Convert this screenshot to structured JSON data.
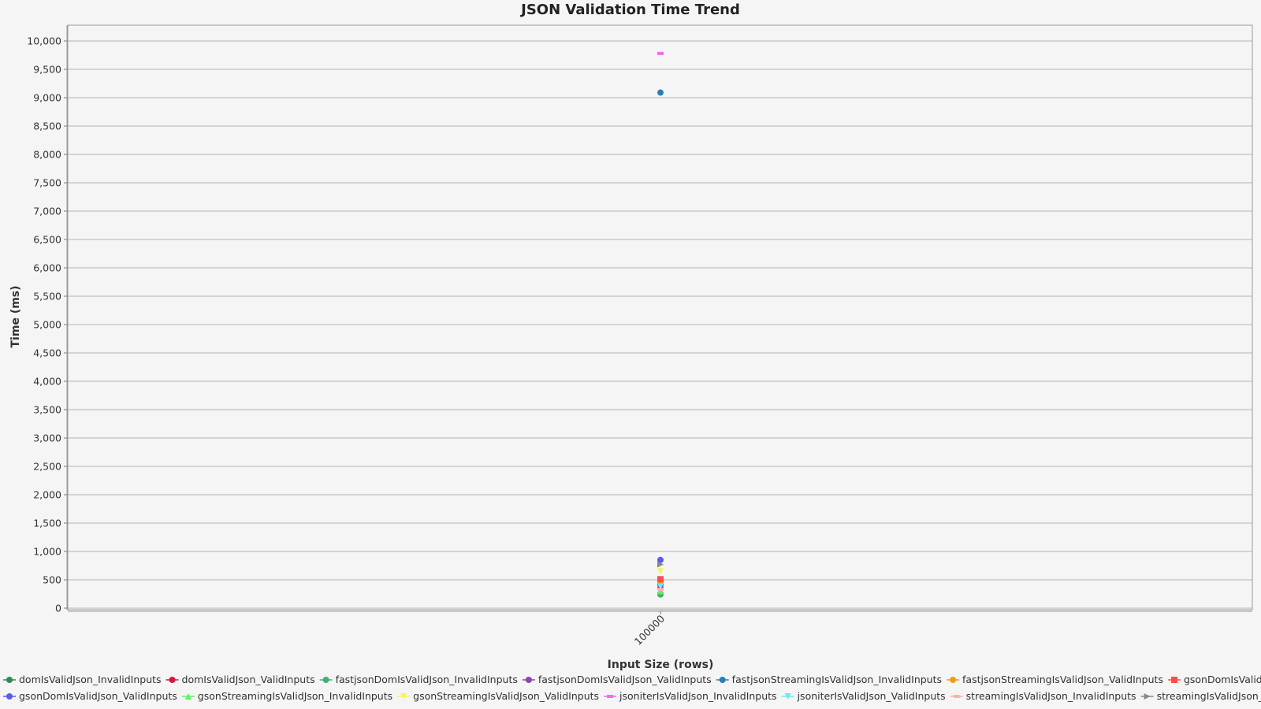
{
  "chart_data": {
    "type": "scatter",
    "title": "JSON Validation Time Trend",
    "xlabel": "Input Size (rows)",
    "ylabel": "Time (ms)",
    "categories": [
      "100000"
    ],
    "ylim": [
      0,
      10000
    ],
    "yticks": [
      0,
      500,
      1000,
      1500,
      2000,
      2500,
      3000,
      3500,
      4000,
      4500,
      5000,
      5500,
      6000,
      6500,
      7000,
      7500,
      8000,
      8500,
      9000,
      9500,
      10000
    ],
    "ytick_labels": [
      "0",
      "500",
      "1,000",
      "1,500",
      "2,000",
      "2,500",
      "3,000",
      "3,500",
      "4,000",
      "4,500",
      "5,000",
      "5,500",
      "6,000",
      "6,500",
      "7,000",
      "7,500",
      "8,000",
      "8,500",
      "9,000",
      "9,500",
      "10,000"
    ],
    "grid": true,
    "legend_position": "bottom",
    "series": [
      {
        "name": "domIsValidJson_InvalidInputs",
        "color": "#2e8b57",
        "marker": "circle",
        "values": [
          250
        ]
      },
      {
        "name": "domIsValidJson_ValidInputs",
        "color": "#dc143c",
        "marker": "circle",
        "values": [
          420
        ]
      },
      {
        "name": "fastjsonDomIsValidJson_InvalidInputs",
        "color": "#3cb371",
        "marker": "circle",
        "values": [
          240
        ]
      },
      {
        "name": "fastjsonDomIsValidJson_ValidInputs",
        "color": "#8e44ad",
        "marker": "circle",
        "values": [
          360
        ]
      },
      {
        "name": "fastjsonStreamingIsValidJson_InvalidInputs",
        "color": "#2e7db5",
        "marker": "circle",
        "values": [
          9090
        ]
      },
      {
        "name": "fastjsonStreamingIsValidJson_ValidInputs",
        "color": "#f39c12",
        "marker": "circle",
        "values": [
          470
        ]
      },
      {
        "name": "gsonDomIsValidJson_InvalidInputs",
        "color": "#ff4d4d",
        "marker": "square",
        "values": [
          510
        ]
      },
      {
        "name": "gsonDomIsValidJson_ValidInputs",
        "color": "#5b5bf0",
        "marker": "circle",
        "values": [
          850
        ]
      },
      {
        "name": "gsonStreamingIsValidJson_InvalidInputs",
        "color": "#66ee66",
        "marker": "triangle-up",
        "values": [
          300
        ]
      },
      {
        "name": "gsonStreamingIsValidJson_ValidInputs",
        "color": "#f5f55a",
        "marker": "triangle-down",
        "values": [
          650
        ]
      },
      {
        "name": "jsoniterIsValidJson_InvalidInputs",
        "color": "#f06cf0",
        "marker": "dash",
        "values": [
          9780
        ]
      },
      {
        "name": "jsoniterIsValidJson_ValidInputs",
        "color": "#66eeee",
        "marker": "triangle-down",
        "values": [
          380
        ]
      },
      {
        "name": "streamingIsValidJson_InvalidInputs",
        "color": "#ffb0b0",
        "marker": "dash",
        "values": [
          330
        ]
      },
      {
        "name": "streamingIsValidJson_ValidInputs",
        "color": "#888888",
        "marker": "triangle-right",
        "values": [
          770
        ]
      }
    ]
  }
}
